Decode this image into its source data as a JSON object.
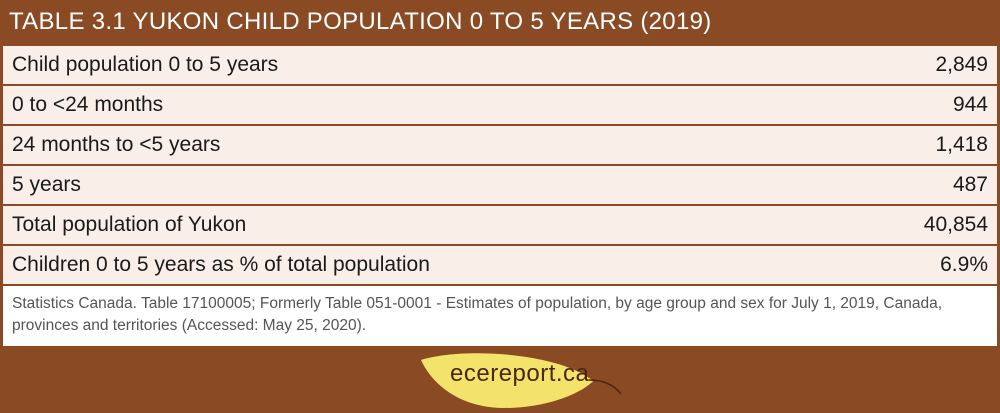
{
  "title": "TABLE 3.1 YUKON CHILD POPULATION 0 TO 5 YEARS (2019)",
  "rows": [
    {
      "label": "Child population 0 to 5 years",
      "value": "2,849"
    },
    {
      "label": "0 to <24 months",
      "value": "944"
    },
    {
      "label": "24 months to <5 years",
      "value": "1,418"
    },
    {
      "label": "5 years",
      "value": "487"
    },
    {
      "label": "Total population of Yukon",
      "value": "40,854"
    },
    {
      "label": "Children 0 to 5 years as % of total population",
      "value": "6.9%"
    }
  ],
  "source": "Statistics Canada. Table 17100005; Formerly Table 051-0001 - Estimates of population, by age group and sex for July 1, 2019, Canada, provinces and territories (Accessed: May 25, 2020).",
  "logo": {
    "text": "ecereport.ca",
    "icon": "leaf-icon",
    "leaf_color": "#f3e36b"
  },
  "colors": {
    "background": "#8a4a24",
    "row_fill": "#f9eee8"
  }
}
